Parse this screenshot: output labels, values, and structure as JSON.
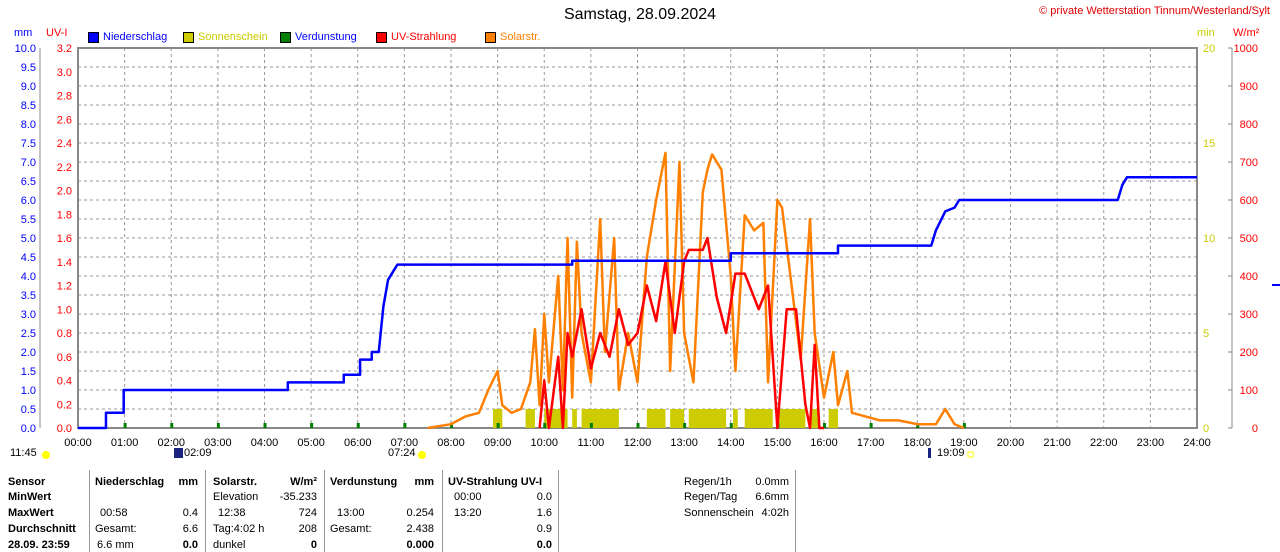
{
  "title": "Samstag, 28.09.2024",
  "copyright": "© private Wetterstation Tinnum/Westerland/Sylt",
  "legend": [
    {
      "label": "Niederschlag",
      "color": "#0000ff",
      "text_color": "#0000ff"
    },
    {
      "label": "Sonnenschein",
      "color": "#cccc00",
      "text_color": "#cccc00"
    },
    {
      "label": "Verdunstung",
      "color": "#008000",
      "text_color": "#0000ff"
    },
    {
      "label": "UV-Strahlung",
      "color": "#ff0000",
      "text_color": "#ff0000"
    },
    {
      "label": "Solarstr.",
      "color": "#ff8000",
      "text_color": "#ff8000"
    }
  ],
  "axis_units": {
    "mm": "mm",
    "uv": "UV-I",
    "min": "min",
    "wm2": "W/m²"
  },
  "sun_events": {
    "moonset": "11:45",
    "moonrise": "02:09",
    "sunrise": "07:24",
    "sunset": "19:09"
  },
  "chart_data": {
    "type": "line",
    "title": "Samstag, 28.09.2024",
    "x_range": [
      0,
      24
    ],
    "x_ticks": [
      "00:00",
      "01:00",
      "02:00",
      "03:00",
      "04:00",
      "05:00",
      "06:00",
      "07:00",
      "08:00",
      "09:00",
      "10:00",
      "11:00",
      "12:00",
      "13:00",
      "14:00",
      "15:00",
      "16:00",
      "17:00",
      "18:00",
      "19:00",
      "20:00",
      "21:00",
      "22:00",
      "23:00",
      "24:00"
    ],
    "y_mm": {
      "range": [
        0,
        10
      ],
      "ticks": [
        "0.0",
        "0.5",
        "1.0",
        "1.5",
        "2.0",
        "2.5",
        "3.0",
        "3.5",
        "4.0",
        "4.5",
        "5.0",
        "5.5",
        "6.0",
        "6.5",
        "7.0",
        "7.5",
        "8.0",
        "8.5",
        "9.0",
        "9.5",
        "10.0"
      ]
    },
    "y_uv": {
      "range": [
        0,
        3.2
      ],
      "ticks": [
        "0.0",
        "0.2",
        "0.4",
        "0.6",
        "0.8",
        "1.0",
        "1.2",
        "1.4",
        "1.6",
        "1.8",
        "2.0",
        "2.2",
        "2.4",
        "2.6",
        "2.8",
        "3.0",
        "3.2"
      ]
    },
    "y_min": {
      "range": [
        0,
        20
      ],
      "ticks": [
        "0",
        "5",
        "10",
        "15",
        "20"
      ]
    },
    "y_wm2": {
      "range": [
        0,
        1000
      ],
      "ticks": [
        "0",
        "100",
        "200",
        "300",
        "400",
        "500",
        "600",
        "700",
        "800",
        "900",
        "1000"
      ]
    },
    "rain": [
      [
        0,
        0
      ],
      [
        0.6,
        0
      ],
      [
        0.6,
        0.4
      ],
      [
        0.98,
        0.4
      ],
      [
        0.98,
        1.0
      ],
      [
        4.5,
        1.0
      ],
      [
        4.5,
        1.2
      ],
      [
        5.7,
        1.2
      ],
      [
        5.7,
        1.4
      ],
      [
        6.05,
        1.4
      ],
      [
        6.05,
        1.8
      ],
      [
        6.3,
        1.8
      ],
      [
        6.3,
        2.0
      ],
      [
        6.45,
        2.0
      ],
      [
        6.55,
        3.2
      ],
      [
        6.65,
        3.9
      ],
      [
        6.75,
        4.1
      ],
      [
        6.85,
        4.3
      ],
      [
        10.6,
        4.3
      ],
      [
        10.6,
        4.4
      ],
      [
        14.0,
        4.4
      ],
      [
        14.0,
        4.6
      ],
      [
        16.3,
        4.6
      ],
      [
        16.3,
        4.8
      ],
      [
        18.3,
        4.8
      ],
      [
        18.4,
        5.2
      ],
      [
        18.6,
        5.7
      ],
      [
        18.8,
        5.8
      ],
      [
        18.9,
        6.0
      ],
      [
        22.3,
        6.0
      ],
      [
        22.4,
        6.4
      ],
      [
        22.5,
        6.6
      ],
      [
        24,
        6.6
      ]
    ],
    "solar": [
      [
        7.5,
        0
      ],
      [
        8.0,
        10
      ],
      [
        8.3,
        30
      ],
      [
        8.6,
        40
      ],
      [
        8.8,
        100
      ],
      [
        9.0,
        150
      ],
      [
        9.1,
        60
      ],
      [
        9.3,
        40
      ],
      [
        9.5,
        50
      ],
      [
        9.7,
        120
      ],
      [
        9.8,
        260
      ],
      [
        9.9,
        60
      ],
      [
        10.0,
        300
      ],
      [
        10.1,
        120
      ],
      [
        10.3,
        400
      ],
      [
        10.4,
        100
      ],
      [
        10.5,
        500
      ],
      [
        10.6,
        80
      ],
      [
        10.7,
        490
      ],
      [
        10.8,
        250
      ],
      [
        11.0,
        120
      ],
      [
        11.2,
        550
      ],
      [
        11.3,
        200
      ],
      [
        11.5,
        500
      ],
      [
        11.6,
        100
      ],
      [
        11.8,
        250
      ],
      [
        12.0,
        120
      ],
      [
        12.2,
        450
      ],
      [
        12.4,
        600
      ],
      [
        12.6,
        724
      ],
      [
        12.7,
        150
      ],
      [
        12.9,
        700
      ],
      [
        13.0,
        250
      ],
      [
        13.2,
        120
      ],
      [
        13.4,
        620
      ],
      [
        13.5,
        680
      ],
      [
        13.6,
        720
      ],
      [
        13.8,
        680
      ],
      [
        14.0,
        400
      ],
      [
        14.1,
        150
      ],
      [
        14.3,
        560
      ],
      [
        14.5,
        520
      ],
      [
        14.7,
        540
      ],
      [
        14.8,
        120
      ],
      [
        15.0,
        600
      ],
      [
        15.1,
        580
      ],
      [
        15.3,
        380
      ],
      [
        15.5,
        180
      ],
      [
        15.7,
        550
      ],
      [
        15.8,
        250
      ],
      [
        16.0,
        80
      ],
      [
        16.2,
        200
      ],
      [
        16.3,
        60
      ],
      [
        16.5,
        150
      ],
      [
        16.6,
        40
      ],
      [
        16.9,
        30
      ],
      [
        17.2,
        20
      ],
      [
        17.6,
        20
      ],
      [
        18.0,
        10
      ],
      [
        18.4,
        10
      ],
      [
        18.6,
        50
      ],
      [
        18.8,
        10
      ],
      [
        19.0,
        0
      ]
    ],
    "uv": [
      [
        9.9,
        0
      ],
      [
        10.0,
        0.4
      ],
      [
        10.1,
        0
      ],
      [
        10.3,
        0.6
      ],
      [
        10.4,
        0
      ],
      [
        10.5,
        0.8
      ],
      [
        10.6,
        0.6
      ],
      [
        10.8,
        1.0
      ],
      [
        11.0,
        0.5
      ],
      [
        11.2,
        0.8
      ],
      [
        11.4,
        0.6
      ],
      [
        11.6,
        1.0
      ],
      [
        11.8,
        0.7
      ],
      [
        12.0,
        0.8
      ],
      [
        12.2,
        1.2
      ],
      [
        12.4,
        0.9
      ],
      [
        12.6,
        1.4
      ],
      [
        12.8,
        0.8
      ],
      [
        13.0,
        1.4
      ],
      [
        13.1,
        1.5
      ],
      [
        13.4,
        1.5
      ],
      [
        13.5,
        1.6
      ],
      [
        13.7,
        1.1
      ],
      [
        13.9,
        0.8
      ],
      [
        14.1,
        1.3
      ],
      [
        14.3,
        1.3
      ],
      [
        14.6,
        1.0
      ],
      [
        14.8,
        1.2
      ],
      [
        15.0,
        0
      ],
      [
        15.2,
        1.0
      ],
      [
        15.4,
        1.0
      ],
      [
        15.6,
        0.2
      ],
      [
        15.7,
        0
      ],
      [
        15.8,
        0.7
      ],
      [
        15.9,
        0
      ],
      [
        16.0,
        0
      ]
    ],
    "sunshine_min": [
      [
        8.9,
        9.1,
        1
      ],
      [
        9.6,
        9.8,
        1
      ],
      [
        10.0,
        10.5,
        1
      ],
      [
        10.6,
        10.7,
        1
      ],
      [
        10.8,
        11.6,
        1
      ],
      [
        12.2,
        12.6,
        1
      ],
      [
        12.7,
        13.0,
        1
      ],
      [
        13.1,
        13.9,
        1
      ],
      [
        14.05,
        14.15,
        1
      ],
      [
        14.3,
        14.9,
        1
      ],
      [
        15.0,
        15.6,
        1
      ],
      [
        15.7,
        15.9,
        1
      ],
      [
        16.1,
        16.3,
        1
      ]
    ],
    "evaporation_marks": [
      1,
      2,
      3,
      4,
      5,
      6,
      7,
      8,
      9,
      10,
      11,
      12,
      13,
      14,
      15,
      16,
      17,
      18,
      19
    ]
  },
  "table": {
    "rows": [
      "Sensor",
      "MinWert",
      "MaxWert",
      "Durchschnitt",
      "28.09. 23:59"
    ],
    "rain": {
      "h": "Niederschlag",
      "u": "mm",
      "max_t": "00:58",
      "max": "0.4",
      "avg_l": "Gesamt:",
      "avg": "6.6",
      "cur_l": "6.6 mm",
      "cur": "0.0"
    },
    "solar": {
      "h": "Solarstr.",
      "u": "W/m²",
      "min_l": "Elevation",
      "min": "-35.233",
      "max_t": "12:38",
      "max": "724",
      "avg_l": "Tag:4:02 h",
      "avg": "208",
      "cur_l": "dunkel",
      "cur": "0"
    },
    "evap": {
      "h": "Verdunstung",
      "u": "mm",
      "max_t": "13:00",
      "max": "0.254",
      "avg_l": "Gesamt:",
      "avg": "2.438",
      "cur": "0.000"
    },
    "uv": {
      "h": "UV-Strahlung UV-I",
      "min_t": "00:00",
      "min": "0.0",
      "max_t": "13:20",
      "max": "1.6",
      "avg": "0.9",
      "cur": "0.0"
    },
    "summary": [
      {
        "l": "Regen/1h",
        "v": "0.0mm"
      },
      {
        "l": "Regen/Tag",
        "v": "6.6mm"
      },
      {
        "l": "Sonnenschein",
        "v": "4:02h"
      }
    ]
  }
}
